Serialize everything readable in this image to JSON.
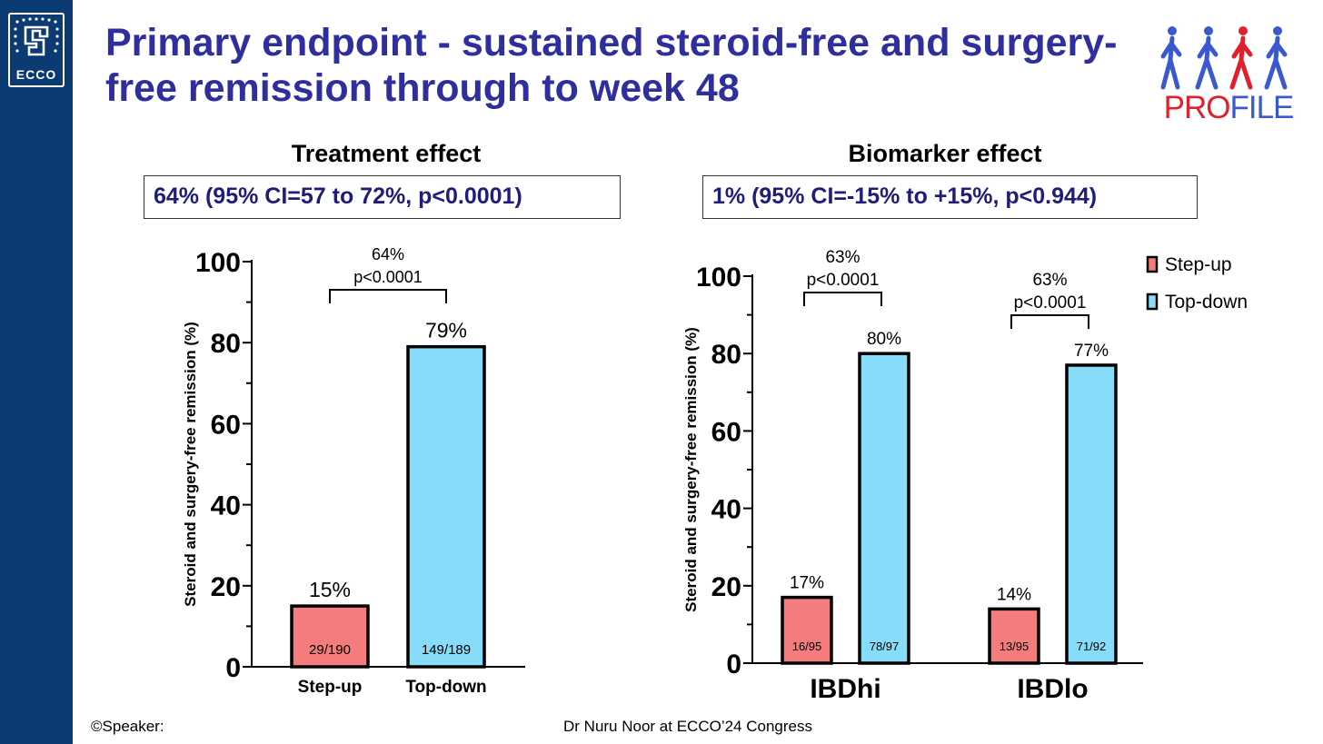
{
  "slide": {
    "title": "Primary endpoint - sustained steroid-free and surgery-free remission through to week 48",
    "logo_left_text": "ECCO",
    "logo_right_pro": "PRO",
    "logo_right_file": "FILE",
    "footer_left": "©Speaker:",
    "footer_right": "Dr Nuru Noor  at ECCO’24 Congress"
  },
  "colors": {
    "sidebar": "#0c3a73",
    "title": "#2e2e9e",
    "step_up": "#f47c7c",
    "top_down": "#86dcf9"
  },
  "chart_data": [
    {
      "type": "bar",
      "title": "Treatment effect",
      "effect_text": "64% (95% CI=57 to 72%, p<0.0001)",
      "ylabel": "Steroid and surgery-free remission (%)",
      "ylim": [
        0,
        100
      ],
      "yticks": [
        0,
        20,
        40,
        60,
        80,
        100
      ],
      "categories": [
        "Step-up",
        "Top-down"
      ],
      "values": [
        15,
        79
      ],
      "value_labels": [
        "15%",
        "79%"
      ],
      "counts": [
        "29/190",
        "149/189"
      ],
      "colors": [
        "#f47c7c",
        "#86dcf9"
      ],
      "comparison": {
        "label1": "64%",
        "label2": "p<0.0001"
      }
    },
    {
      "type": "bar",
      "title": "Biomarker effect",
      "effect_text": "1% (95% CI=-15% to +15%, p<0.944)",
      "ylabel": "Steroid and surgery-free remission (%)",
      "ylim": [
        0,
        100
      ],
      "yticks": [
        0,
        20,
        40,
        60,
        80,
        100
      ],
      "categories": [
        "IBDhi",
        "IBDlo"
      ],
      "series": [
        {
          "name": "Step-up",
          "values": [
            17,
            14
          ],
          "value_labels": [
            "17%",
            "14%"
          ],
          "counts": [
            "16/95",
            "13/95"
          ],
          "color": "#f47c7c"
        },
        {
          "name": "Top-down",
          "values": [
            80,
            77
          ],
          "value_labels": [
            "80%",
            "77%"
          ],
          "counts": [
            "78/97",
            "71/92"
          ],
          "color": "#86dcf9"
        }
      ],
      "comparisons": [
        {
          "label1": "63%",
          "label2": "p<0.0001"
        },
        {
          "label1": "63%",
          "label2": "p<0.0001"
        }
      ],
      "legend_position": "top-right"
    }
  ]
}
